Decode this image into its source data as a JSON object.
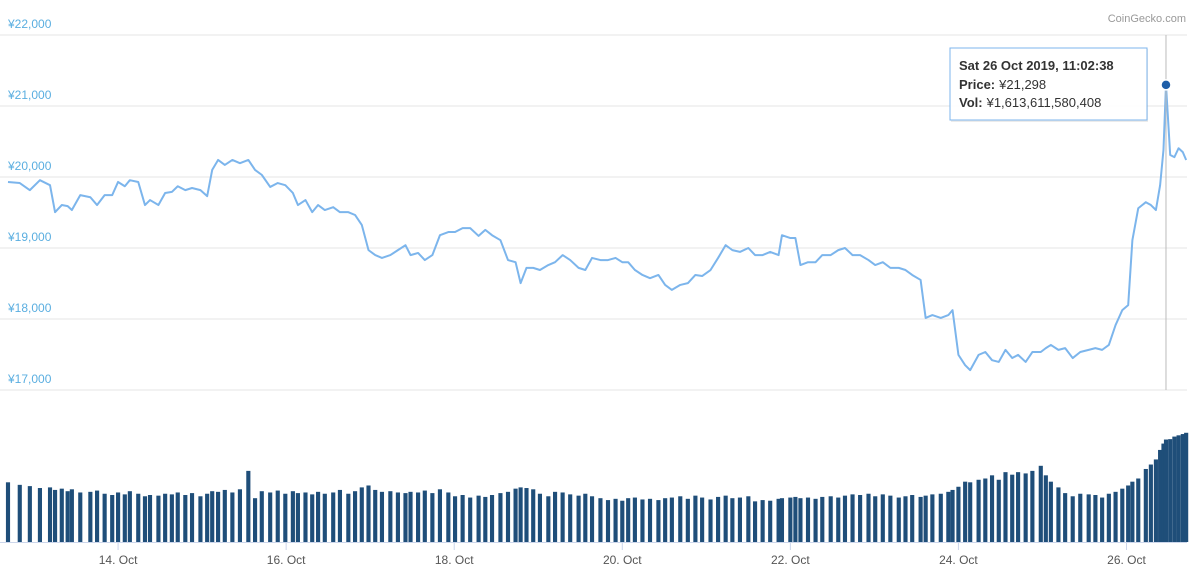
{
  "chart_data": {
    "type": "line",
    "credit": "CoinGecko.com",
    "x": [
      12.69,
      12.83,
      12.95,
      13.07,
      13.19,
      13.25,
      13.33,
      13.4,
      13.45,
      13.55,
      13.67,
      13.75,
      13.84,
      13.93,
      14.0,
      14.08,
      14.14,
      14.24,
      14.32,
      14.38,
      14.48,
      14.56,
      14.64,
      14.71,
      14.8,
      14.88,
      14.98,
      15.06,
      15.12,
      15.19,
      15.27,
      15.36,
      15.45,
      15.55,
      15.63,
      15.71,
      15.81,
      15.9,
      15.99,
      16.08,
      16.14,
      16.23,
      16.31,
      16.38,
      16.46,
      16.56,
      16.64,
      16.74,
      16.82,
      16.9,
      16.98,
      17.06,
      17.14,
      17.24,
      17.33,
      17.42,
      17.48,
      17.57,
      17.65,
      17.74,
      17.83,
      17.93,
      18.01,
      18.1,
      18.19,
      18.29,
      18.37,
      18.45,
      18.55,
      18.64,
      18.73,
      18.79,
      18.86,
      18.94,
      19.02,
      19.12,
      19.2,
      19.29,
      19.38,
      19.48,
      19.56,
      19.64,
      19.74,
      19.83,
      19.92,
      20.0,
      20.07,
      20.15,
      20.24,
      20.33,
      20.43,
      20.51,
      20.59,
      20.69,
      20.78,
      20.87,
      20.95,
      21.05,
      21.14,
      21.23,
      21.31,
      21.4,
      21.5,
      21.58,
      21.67,
      21.76,
      21.86,
      21.9,
      22.0,
      22.06,
      22.12,
      22.21,
      22.3,
      22.38,
      22.48,
      22.57,
      22.65,
      22.74,
      22.83,
      22.93,
      23.01,
      23.1,
      23.19,
      23.29,
      23.37,
      23.45,
      23.55,
      23.61,
      23.69,
      23.79,
      23.88,
      23.93,
      24.0,
      24.08,
      24.14,
      24.24,
      24.32,
      24.4,
      24.48,
      24.56,
      24.64,
      24.71,
      24.8,
      24.88,
      24.98,
      25.04,
      25.1,
      25.19,
      25.27,
      25.36,
      25.45,
      25.55,
      25.63,
      25.71,
      25.79,
      25.87,
      25.95,
      26.02,
      26.07,
      26.14,
      26.23,
      26.29,
      26.35,
      26.4,
      26.44,
      26.47,
      26.52,
      26.57,
      26.62,
      26.67,
      26.71
    ],
    "series": [
      {
        "color": "#7cb5ec",
        "values": [
          19930,
          19915,
          19815,
          19955,
          19885,
          19505,
          19605,
          19590,
          19535,
          19745,
          19715,
          19605,
          19745,
          19745,
          19930,
          19870,
          19955,
          19930,
          19605,
          19675,
          19605,
          19775,
          19790,
          19870,
          19815,
          19845,
          19815,
          19730,
          20100,
          20240,
          20170,
          20240,
          20195,
          20240,
          20100,
          20030,
          19860,
          19915,
          19885,
          19775,
          19605,
          19675,
          19505,
          19605,
          19535,
          19575,
          19505,
          19505,
          19465,
          19325,
          18970,
          18900,
          18860,
          18900,
          18970,
          19040,
          18900,
          18930,
          18830,
          18900,
          19180,
          19225,
          19225,
          19280,
          19280,
          19170,
          19255,
          19180,
          19110,
          18830,
          18800,
          18505,
          18720,
          18720,
          18690,
          18760,
          18800,
          18900,
          18830,
          18720,
          18690,
          18860,
          18830,
          18830,
          18860,
          18800,
          18800,
          18690,
          18620,
          18575,
          18620,
          18480,
          18410,
          18480,
          18505,
          18620,
          18605,
          18690,
          18860,
          19040,
          18970,
          18945,
          19000,
          18900,
          18900,
          18945,
          18900,
          19180,
          19140,
          19140,
          18760,
          18800,
          18800,
          18900,
          18900,
          18970,
          19000,
          18900,
          18900,
          18830,
          18760,
          18800,
          18720,
          18720,
          18690,
          18620,
          18550,
          18015,
          18055,
          18015,
          18055,
          18125,
          17495,
          17350,
          17280,
          17495,
          17535,
          17420,
          17395,
          17565,
          17450,
          17495,
          17395,
          17535,
          17535,
          17590,
          17635,
          17565,
          17590,
          17450,
          17535,
          17565,
          17590,
          17565,
          17635,
          17915,
          18125,
          18195,
          19110,
          19560,
          19645,
          19605,
          19535,
          19885,
          20380,
          21298,
          20310,
          20280,
          20405,
          20350,
          20240
        ]
      },
      {
        "type": "bar",
        "axis": "y2",
        "color": "#1f4e79",
        "values": [
          940000000000.0,
          900000000000.0,
          880000000000.0,
          850000000000.0,
          860000000000.0,
          820000000000.0,
          840000000000.0,
          800000000000.0,
          830000000000.0,
          780000000000.0,
          790000000000.0,
          810000000000.0,
          760000000000.0,
          740000000000.0,
          780000000000.0,
          750000000000.0,
          800000000000.0,
          760000000000.0,
          720000000000.0,
          740000000000.0,
          730000000000.0,
          760000000000.0,
          750000000000.0,
          780000000000.0,
          740000000000.0,
          770000000000.0,
          720000000000.0,
          760000000000.0,
          800000000000.0,
          790000000000.0,
          820000000000.0,
          780000000000.0,
          830000000000.0,
          1120000000000.0,
          690000000000.0,
          800000000000.0,
          780000000000.0,
          810000000000.0,
          760000000000.0,
          800000000000.0,
          770000000000.0,
          780000000000.0,
          750000000000.0,
          790000000000.0,
          760000000000.0,
          780000000000.0,
          820000000000.0,
          760000000000.0,
          800000000000.0,
          860000000000.0,
          890000000000.0,
          820000000000.0,
          790000000000.0,
          800000000000.0,
          780000000000.0,
          770000000000.0,
          790000000000.0,
          780000000000.0,
          810000000000.0,
          770000000000.0,
          830000000000.0,
          780000000000.0,
          720000000000.0,
          740000000000.0,
          700000000000.0,
          730000000000.0,
          710000000000.0,
          740000000000.0,
          770000000000.0,
          790000000000.0,
          840000000000.0,
          860000000000.0,
          850000000000.0,
          830000000000.0,
          760000000000.0,
          720000000000.0,
          790000000000.0,
          780000000000.0,
          750000000000.0,
          730000000000.0,
          760000000000.0,
          720000000000.0,
          690000000000.0,
          660000000000.0,
          680000000000.0,
          650000000000.0,
          690000000000.0,
          700000000000.0,
          670000000000.0,
          680000000000.0,
          660000000000.0,
          690000000000.0,
          700000000000.0,
          720000000000.0,
          680000000000.0,
          730000000000.0,
          700000000000.0,
          670000000000.0,
          710000000000.0,
          730000000000.0,
          690000000000.0,
          700000000000.0,
          720000000000.0,
          640000000000.0,
          660000000000.0,
          650000000000.0,
          680000000000.0,
          690000000000.0,
          700000000000.0,
          710000000000.0,
          690000000000.0,
          700000000000.0,
          680000000000.0,
          710000000000.0,
          720000000000.0,
          700000000000.0,
          730000000000.0,
          750000000000.0,
          740000000000.0,
          760000000000.0,
          720000000000.0,
          750000000000.0,
          730000000000.0,
          700000000000.0,
          720000000000.0,
          740000000000.0,
          710000000000.0,
          730000000000.0,
          750000000000.0,
          760000000000.0,
          790000000000.0,
          820000000000.0,
          870000000000.0,
          950000000000.0,
          940000000000.0,
          980000000000.0,
          1000000000000.0,
          1050000000000.0,
          980000000000.0,
          1100000000000.0,
          1060000000000.0,
          1100000000000.0,
          1080000000000.0,
          1120000000000.0,
          1200000000000.0,
          1050000000000.0,
          950000000000.0,
          860000000000.0,
          770000000000.0,
          720000000000.0,
          760000000000.0,
          750000000000.0,
          740000000000.0,
          700000000000.0,
          760000000000.0,
          790000000000.0,
          840000000000.0,
          890000000000.0,
          950000000000.0,
          1000000000000.0,
          1150000000000.0,
          1220000000000.0,
          1300000000000.0,
          1450000000000.0,
          1550000000000.0,
          1613611580408,
          1620000000000.0,
          1660000000000.0,
          1680000000000.0,
          1700000000000.0,
          1720000000000.0
        ]
      }
    ],
    "xlim": [
      12.69,
      26.72
    ],
    "xticks": [
      {
        "value": 14,
        "label": "14. Oct"
      },
      {
        "value": 16,
        "label": "16. Oct"
      },
      {
        "value": 18,
        "label": "18. Oct"
      },
      {
        "value": 20,
        "label": "20. Oct"
      },
      {
        "value": 22,
        "label": "22. Oct"
      },
      {
        "value": 24,
        "label": "24. Oct"
      },
      {
        "value": 26,
        "label": "26. Oct"
      }
    ],
    "ylim": [
      17000,
      22000
    ],
    "yticks": [
      {
        "value": 17000,
        "label": "¥17,000"
      },
      {
        "value": 18000,
        "label": "¥18,000"
      },
      {
        "value": 19000,
        "label": "¥19,000"
      },
      {
        "value": 20000,
        "label": "¥20,000"
      },
      {
        "value": 21000,
        "label": "¥21,000"
      },
      {
        "value": 22000,
        "label": "¥22,000"
      }
    ],
    "y2lim": [
      0,
      2000000000000.0
    ],
    "grid": true,
    "tooltip": {
      "x": 26.47,
      "date": "Sat 26 Oct 2019, 11:02:38",
      "price_caption": "Price:",
      "price": {
        "value": 21298,
        "label": "¥21,298"
      },
      "volume_caption": "Vol:",
      "volume": {
        "value": 1613611580408,
        "label": "¥1,613,611,580,408"
      }
    }
  }
}
